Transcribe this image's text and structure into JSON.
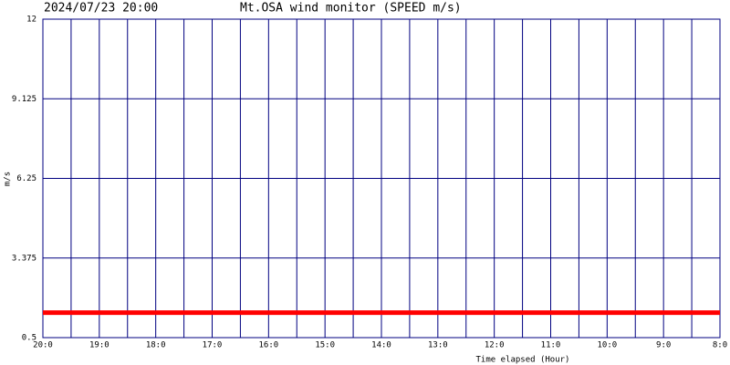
{
  "chart_data": {
    "type": "line",
    "date": "2024/07/23 20:00",
    "title": "Mt.OSA wind monitor (SPEED m/s)",
    "y_label": "m/s",
    "x_label": "Time elapsed (Hour)",
    "x": [
      20,
      8
    ],
    "series": [
      {
        "name": "SPEED",
        "color": "#ff0000",
        "values": [
          1.4,
          1.4
        ]
      }
    ],
    "xlim": [
      20,
      8
    ],
    "xticks": [
      {
        "value": 20,
        "label": "20:0"
      },
      {
        "value": 19,
        "label": "19:0"
      },
      {
        "value": 18,
        "label": "18:0"
      },
      {
        "value": 17,
        "label": "17:0"
      },
      {
        "value": 16,
        "label": "16:0"
      },
      {
        "value": 15,
        "label": "15:0"
      },
      {
        "value": 14,
        "label": "14:0"
      },
      {
        "value": 13,
        "label": "13:0"
      },
      {
        "value": 12,
        "label": "12:0"
      },
      {
        "value": 11,
        "label": "11:0"
      },
      {
        "value": 10,
        "label": "10:0"
      },
      {
        "value": 9,
        "label": "9:0"
      },
      {
        "value": 8,
        "label": "8:0"
      }
    ],
    "ylim": [
      0.5,
      12
    ],
    "yticks": [
      0.5,
      3.375,
      6.25,
      9.125,
      12
    ],
    "grid": true,
    "grid_color": "#000080"
  }
}
